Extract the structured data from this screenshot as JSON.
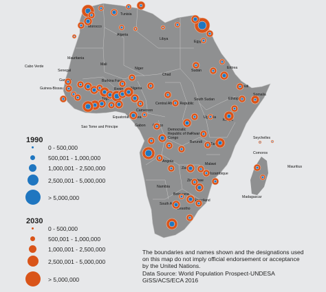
{
  "colors": {
    "sea": "#e7e8ea",
    "land": "#8f9091",
    "border": "#c9c9c9",
    "c1990": "#1f76c0",
    "c2030": "#d95419"
  },
  "legend_1990": {
    "title": "1990",
    "items": [
      "0 - 500,000",
      "500,001 - 1,000,000",
      "1,000,001 - 2,500,000",
      "2,500,001 - 5,000,000",
      "> 5,000,000"
    ]
  },
  "legend_2030": {
    "title": "2030",
    "items": [
      "0 - 500,000",
      "500,001 - 1,000,000",
      "1,000,001 - 2,500,000",
      "2,500,001 - 5,000,000",
      "> 5,000,000"
    ]
  },
  "note": {
    "disclaimer": [
      "The boundaries and names shown and the designations used",
      "on this map do not imply official endorsement or acceptance",
      "by the United Nations."
    ],
    "source": "Data Source: World Population Prospect-UNDESA",
    "credit": "GiSS/ACS/ECA 2016"
  },
  "countries": [
    "Morocco",
    "Tunisia",
    "Algeria",
    "Libya",
    "Egypt",
    "Mauritania",
    "Mali",
    "Niger",
    "Chad",
    "Sudan",
    "Eritrea",
    "Cabo Verde",
    "Senegal",
    "Gambia",
    "Guinea-Bissau",
    "Burkina Faso",
    "Benin",
    "Nigeria",
    "Togo",
    "Djibouti",
    "Somalia",
    "Ethiopia",
    "South Sudan",
    "Central African Republic",
    "Cameroon",
    "Equatorial Guinea",
    "Sao Tome and Principe",
    "Gabon",
    "Congo",
    "Democratic Republic of the Congo",
    "Uganda",
    "Kenya",
    "Rwanda",
    "Burundi",
    "Tanzania",
    "Seychelles",
    "Comoros",
    "Angola",
    "Zambia",
    "Malawi",
    "Mozambique",
    "Zimbabwe",
    "Namibia",
    "Botswana",
    "Madagascar",
    "Mauritius",
    "South Africa",
    "Swaziland",
    "Lesotho"
  ]
}
